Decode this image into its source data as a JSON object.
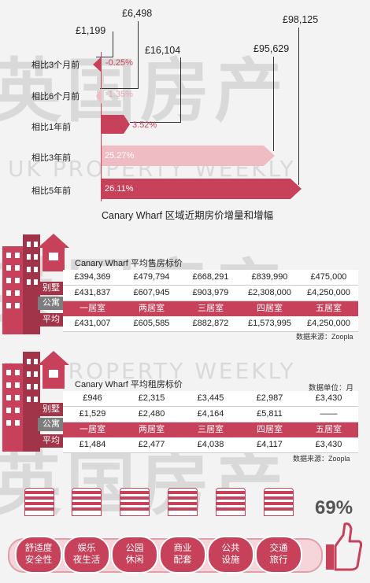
{
  "watermark": {
    "cn": "英国房产",
    "en": "UK PROPERTY WEEKLY"
  },
  "growth_chart": {
    "title": "Canary Wharf 区域近期房价增量和增幅",
    "rows": [
      {
        "label": "相比3个月前",
        "pct": "-0.25%",
        "change": "£1,199"
      },
      {
        "label": "相比6个月前",
        "pct": "-1.35%",
        "change": "£6,498"
      },
      {
        "label": "相比1年前",
        "pct": "3.52%",
        "change": "£16,104"
      },
      {
        "label": "相比3年前",
        "pct": "25.27%",
        "change": "£95,629"
      },
      {
        "label": "相比5年前",
        "pct": "26.11%",
        "change": "£98,125"
      }
    ]
  },
  "sale_table": {
    "title": "Canary Wharf  平均售房标价",
    "tags": [
      "别墅",
      "公寓",
      "平均"
    ],
    "rows": [
      [
        "£394,369",
        "£479,794",
        "£668,291",
        "£839,990",
        "£475,000"
      ],
      [
        "£431,837",
        "£607,945",
        "£903,979",
        "£2,308,000",
        "£4,250,000"
      ],
      [
        "£431,007",
        "£605,585",
        "£882,872",
        "£1,573,995",
        "£4,250,000"
      ]
    ],
    "headers": [
      "一居室",
      "两居室",
      "三居室",
      "四居室",
      "五居室"
    ],
    "source": "数据来源：Zoopla"
  },
  "rent_table": {
    "title": "Canary Wharf  平均租房标价",
    "unit": "数据单位：月",
    "tags": [
      "别墅",
      "公寓",
      "平均"
    ],
    "rows": [
      [
        "£946",
        "£2,315",
        "£3,445",
        "£2,987",
        "£3,430"
      ],
      [
        "£1,529",
        "£2,480",
        "£4,164",
        "£5,811",
        "——"
      ],
      [
        "£1,484",
        "£2,477",
        "£4,038",
        "£4,117",
        "£3,430"
      ]
    ],
    "headers": [
      "一居室",
      "两居室",
      "三居室",
      "四居室",
      "五居室"
    ],
    "source": "数据来源：Zoopla"
  },
  "amenities": {
    "score": "69%",
    "items": [
      {
        "l1": "舒适度",
        "l2": "安全性"
      },
      {
        "l1": "娱乐",
        "l2": "夜生活"
      },
      {
        "l1": "公园",
        "l2": "休闲"
      },
      {
        "l1": "商业",
        "l2": "配套"
      },
      {
        "l1": "公共",
        "l2": "设施"
      },
      {
        "l1": "交通",
        "l2": "旅行"
      }
    ]
  },
  "colors": {
    "accent": "#c8415a",
    "dark_accent": "#a13448",
    "pale_accent": "#f0bcc4"
  }
}
